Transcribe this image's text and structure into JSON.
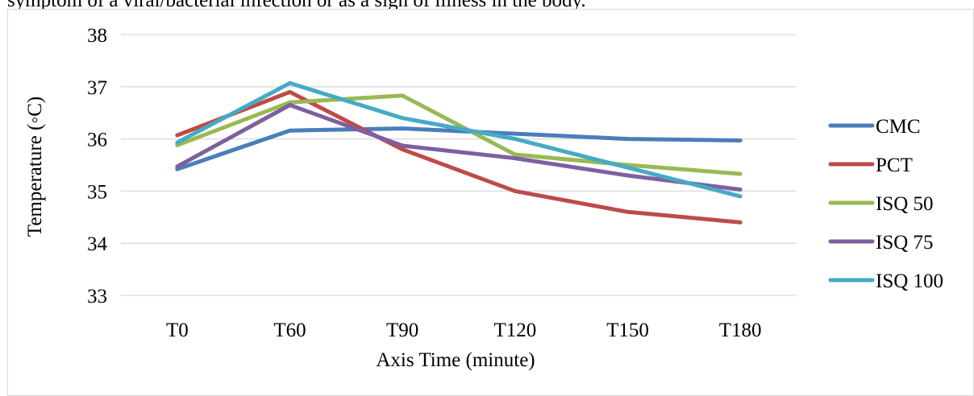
{
  "top_text": "symptom of a viral/bacterial infection or as a sign of illness in the body.",
  "chart_data": {
    "type": "line",
    "title": "",
    "xlabel": "Axis Time (minute)",
    "ylabel": "Temperature (◦C)",
    "categories": [
      "T0",
      "T60",
      "T90",
      "T120",
      "T150",
      "T180"
    ],
    "ylim": [
      33,
      38
    ],
    "yticks": [
      "33",
      "34",
      "35",
      "36",
      "37",
      "38"
    ],
    "grid": true,
    "legend_position": "right",
    "series": [
      {
        "name": "CMC",
        "color": "#4a7ebb",
        "values": [
          35.42,
          36.16,
          36.2,
          36.1,
          36.0,
          35.97
        ]
      },
      {
        "name": "PCT",
        "color": "#be4b48",
        "values": [
          36.07,
          36.9,
          35.8,
          35.0,
          34.6,
          34.4
        ]
      },
      {
        "name": "ISQ 50",
        "color": "#98b954",
        "values": [
          35.88,
          36.7,
          36.83,
          35.7,
          35.5,
          35.33
        ]
      },
      {
        "name": "ISQ 75",
        "color": "#7d60a0",
        "values": [
          35.47,
          36.65,
          35.87,
          35.63,
          35.3,
          35.03
        ]
      },
      {
        "name": "ISQ 100",
        "color": "#46aac5",
        "values": [
          35.93,
          37.07,
          36.4,
          36.0,
          35.45,
          34.9
        ]
      }
    ]
  }
}
